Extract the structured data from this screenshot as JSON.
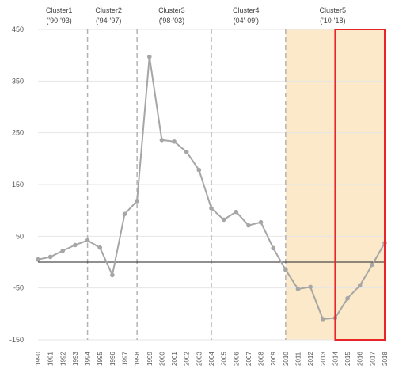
{
  "chart_data": {
    "type": "line",
    "x": [
      1990,
      1991,
      1992,
      1993,
      1994,
      1995,
      1996,
      1997,
      1998,
      1999,
      2000,
      2001,
      2002,
      2003,
      2004,
      2005,
      2006,
      2007,
      2008,
      2009,
      2010,
      2011,
      2012,
      2013,
      2014,
      2015,
      2016,
      2017,
      2018
    ],
    "values": [
      5,
      10,
      22,
      33,
      42,
      28,
      -25,
      93,
      118,
      397,
      236,
      233,
      213,
      178,
      104,
      82,
      97,
      71,
      77,
      27,
      -15,
      -52,
      -48,
      -110,
      -108,
      -70,
      -45,
      -5,
      37
    ],
    "ylim": [
      -150,
      450
    ],
    "yticks": [
      450,
      350,
      250,
      150,
      50,
      -50,
      -150
    ],
    "xlim": [
      1990,
      2018
    ],
    "clusters": [
      {
        "name": "Cluster1",
        "range": "('90-'93)",
        "center": 1991.7
      },
      {
        "name": "Cluster2",
        "range": "('94-'97)",
        "center": 1995.7
      },
      {
        "name": "Cluster3",
        "range": "('98-'03)",
        "center": 2000.8
      },
      {
        "name": "Cluster4",
        "range": "(04'-09')",
        "center": 2006.8
      },
      {
        "name": "Cluster5",
        "range": "('10-'18)",
        "center": 2013.8
      }
    ],
    "boundaries": [
      1994,
      1998,
      2004,
      2010
    ],
    "highlight_range": [
      2010,
      2018
    ],
    "box_range": [
      2014,
      2018
    ],
    "zero_line": 0,
    "colors": {
      "line": "#a6a6a6",
      "marker": "#a6a6a6",
      "shade": "#fbe9c9",
      "box": "#e8262a",
      "grid": "#e6e6e6",
      "boundary": "#b3b3b3",
      "zero": "#222222"
    }
  }
}
